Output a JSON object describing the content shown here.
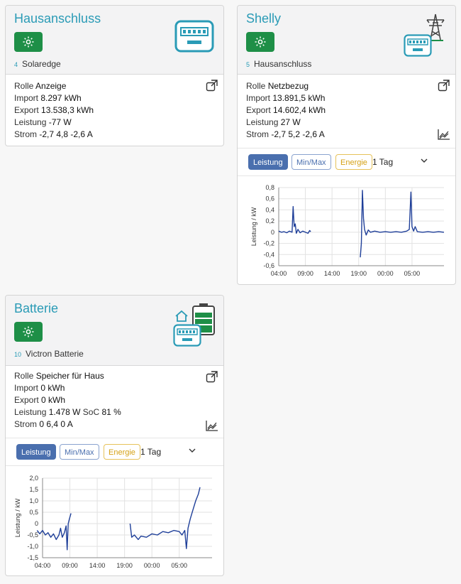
{
  "cards": [
    {
      "title": "Hausanschluss",
      "id": "4",
      "name": "Solaredge",
      "rolle_label": "Rolle",
      "rolle_value": "Anzeige",
      "import_label": "Import",
      "import_value": "8.297 kWh",
      "export_label": "Export",
      "export_value": "13.538,3 kWh",
      "leistung_label": "Leistung",
      "leistung_value": "-77 W",
      "strom_label": "Strom",
      "strom_value": "-2,7 4,8 -2,6 A",
      "icons": [
        "gear-icon",
        "meter-icon",
        "external-link-icon"
      ]
    },
    {
      "title": "Shelly",
      "id": "5",
      "name": "Hausanschluss",
      "rolle_label": "Rolle",
      "rolle_value": "Netzbezug",
      "import_label": "Import",
      "import_value": "13.891,5 kWh",
      "export_label": "Export",
      "export_value": "14.602,4 kWh",
      "leistung_label": "Leistung",
      "leistung_value": "27 W",
      "strom_label": "Strom",
      "strom_value": "-2,7 5,2 -2,6 A",
      "tabs": {
        "leistung": "Leistung",
        "minmax": "Min/Max",
        "energie": "Energie"
      },
      "period": "1 Tag",
      "icons": [
        "gear-icon",
        "power-tower-icon",
        "meter-icon",
        "external-link-icon",
        "chart-icon",
        "chevron-down-icon"
      ]
    },
    {
      "title": "Batterie",
      "id": "10",
      "name": "Victron Batterie",
      "rolle_label": "Rolle",
      "rolle_value": "Speicher für Haus",
      "import_label": "Import",
      "import_value": "0 kWh",
      "export_label": "Export",
      "export_value": "0 kWh",
      "leistung_label": "Leistung",
      "leistung_value": "1.478 W",
      "soc_label": "SoC",
      "soc_value": "81 %",
      "strom_label": "Strom",
      "strom_value": "0 6,4 0 A",
      "tabs": {
        "leistung": "Leistung",
        "minmax": "Min/Max",
        "energie": "Energie"
      },
      "period": "1 Tag",
      "icons": [
        "gear-icon",
        "house-icon",
        "battery-icon",
        "meter-icon",
        "external-link-icon",
        "chart-icon",
        "chevron-down-icon"
      ]
    }
  ],
  "chart_data": [
    {
      "type": "line",
      "ylabel": "Leistung / kW",
      "ylim": [
        -0.6,
        0.8
      ],
      "yticks": [
        "0,8",
        "0,6",
        "0,4",
        "0,2",
        "0",
        "-0,2",
        "-0,4",
        "-0,6"
      ],
      "xlim": [
        0,
        31
      ],
      "xticks": [
        {
          "x": 0,
          "label": "04:00"
        },
        {
          "x": 5,
          "label": "09:00"
        },
        {
          "x": 10,
          "label": "14:00"
        },
        {
          "x": 15,
          "label": "19:00"
        },
        {
          "x": 20,
          "label": "00:00"
        },
        {
          "x": 25,
          "label": "05:00"
        }
      ],
      "series": [
        {
          "color": "#1f3f99",
          "points": [
            [
              0,
              0.02
            ],
            [
              0.5,
              0
            ],
            [
              1,
              0.01
            ],
            [
              1.5,
              -0.01
            ],
            [
              2,
              0.02
            ],
            [
              2.5,
              0
            ],
            [
              2.7,
              0.46
            ],
            [
              2.9,
              0.1
            ],
            [
              3.1,
              0.15
            ],
            [
              3.3,
              -0.02
            ],
            [
              3.6,
              0.05
            ],
            [
              4,
              -0.01
            ],
            [
              4.5,
              0.02
            ],
            [
              5,
              0
            ],
            [
              5.5,
              -0.02
            ],
            [
              5.8,
              0.03
            ],
            [
              6,
              0.01
            ]
          ]
        },
        {
          "color": "#1f3f99",
          "points": [
            [
              15.3,
              -0.45
            ],
            [
              15.5,
              -0.2
            ],
            [
              15.7,
              0.75
            ],
            [
              15.9,
              0.25
            ],
            [
              16.1,
              0.05
            ],
            [
              16.4,
              -0.05
            ],
            [
              16.8,
              0.04
            ],
            [
              17.2,
              0
            ],
            [
              18,
              0.02
            ],
            [
              19,
              0
            ],
            [
              20,
              0.01
            ],
            [
              21,
              0
            ],
            [
              22,
              0.01
            ],
            [
              23,
              0
            ],
            [
              24,
              0.02
            ],
            [
              24.5,
              0.05
            ],
            [
              24.8,
              0.72
            ],
            [
              25,
              0.1
            ],
            [
              25.3,
              0.02
            ],
            [
              25.6,
              0.1
            ],
            [
              26,
              0.01
            ],
            [
              27,
              0
            ],
            [
              28,
              0.01
            ],
            [
              29,
              0
            ],
            [
              30,
              0.01
            ],
            [
              31,
              0
            ]
          ]
        }
      ]
    },
    {
      "type": "line",
      "ylabel": "Leistung / kW",
      "ylim": [
        -1.5,
        2.0
      ],
      "yticks": [
        "2,0",
        "1,5",
        "1,0",
        "0,5",
        "0",
        "-0,5",
        "-1,0",
        "-1,5"
      ],
      "xlim": [
        0,
        31
      ],
      "xticks": [
        {
          "x": 0,
          "label": "04:00"
        },
        {
          "x": 5,
          "label": "09:00"
        },
        {
          "x": 10,
          "label": "14:00"
        },
        {
          "x": 15,
          "label": "19:00"
        },
        {
          "x": 20,
          "label": "00:00"
        },
        {
          "x": 25,
          "label": "05:00"
        }
      ],
      "series": [
        {
          "color": "#1f3f99",
          "points": [
            [
              -1,
              -0.3
            ],
            [
              -0.5,
              -0.45
            ],
            [
              0,
              -0.3
            ],
            [
              0.5,
              -0.5
            ],
            [
              1,
              -0.4
            ],
            [
              1.5,
              -0.6
            ],
            [
              2,
              -0.45
            ],
            [
              2.5,
              -0.7
            ],
            [
              3,
              -0.5
            ],
            [
              3.3,
              -0.2
            ],
            [
              3.6,
              -0.6
            ],
            [
              4,
              -0.4
            ],
            [
              4.3,
              -0.1
            ],
            [
              4.5,
              -1.15
            ],
            [
              4.7,
              0.0
            ],
            [
              4.9,
              0.2
            ],
            [
              5.2,
              0.45
            ]
          ]
        },
        {
          "color": "#1f3f99",
          "points": [
            [
              16,
              0.0
            ],
            [
              16.3,
              -0.6
            ],
            [
              16.8,
              -0.5
            ],
            [
              17.5,
              -0.7
            ],
            [
              18,
              -0.55
            ],
            [
              19,
              -0.6
            ],
            [
              20,
              -0.45
            ],
            [
              21,
              -0.5
            ],
            [
              22,
              -0.35
            ],
            [
              23,
              -0.4
            ],
            [
              24,
              -0.3
            ],
            [
              25,
              -0.35
            ],
            [
              25.5,
              -0.5
            ],
            [
              26,
              -0.3
            ],
            [
              26.3,
              -1.1
            ],
            [
              26.6,
              -0.2
            ],
            [
              27,
              0.2
            ],
            [
              27.5,
              0.6
            ],
            [
              28,
              1.0
            ],
            [
              28.5,
              1.3
            ],
            [
              28.8,
              1.6
            ]
          ]
        }
      ]
    }
  ]
}
